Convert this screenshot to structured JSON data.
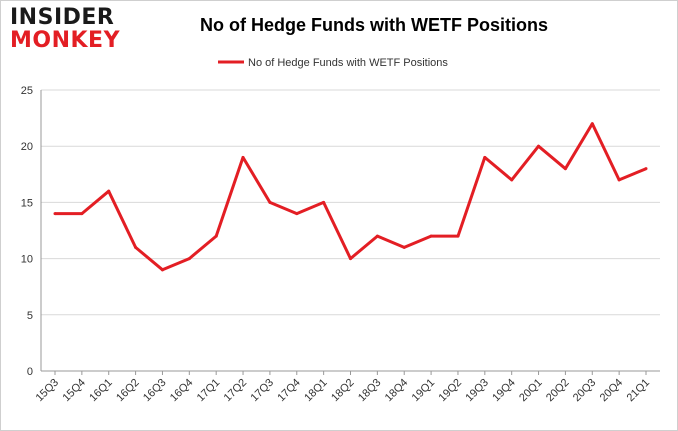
{
  "logo": {
    "line1": "INSIDER",
    "line2": "MONKEY"
  },
  "chart_data": {
    "type": "line",
    "title": "No of Hedge Funds with WETF Positions",
    "categories": [
      "15Q3",
      "15Q4",
      "16Q1",
      "16Q2",
      "16Q3",
      "16Q4",
      "17Q1",
      "17Q2",
      "17Q3",
      "17Q4",
      "18Q1",
      "18Q2",
      "18Q3",
      "18Q4",
      "19Q1",
      "19Q2",
      "19Q3",
      "19Q4",
      "20Q1",
      "20Q2",
      "20Q3",
      "20Q4",
      "21Q1"
    ],
    "series": [
      {
        "name": "No of Hedge Funds with WETF Positions",
        "values": [
          14,
          14,
          16,
          11,
          9,
          10,
          12,
          19,
          15,
          14,
          15,
          10,
          12,
          11,
          12,
          12,
          19,
          17,
          20,
          18,
          22,
          17,
          18
        ]
      }
    ],
    "ylim": [
      0,
      25
    ],
    "yticks": [
      0,
      5,
      10,
      15,
      20,
      25
    ],
    "grid": true,
    "legend": "top-center",
    "colors": {
      "line": "#e31e24",
      "grid": "#d9d9d9",
      "axis": "#999999"
    }
  }
}
